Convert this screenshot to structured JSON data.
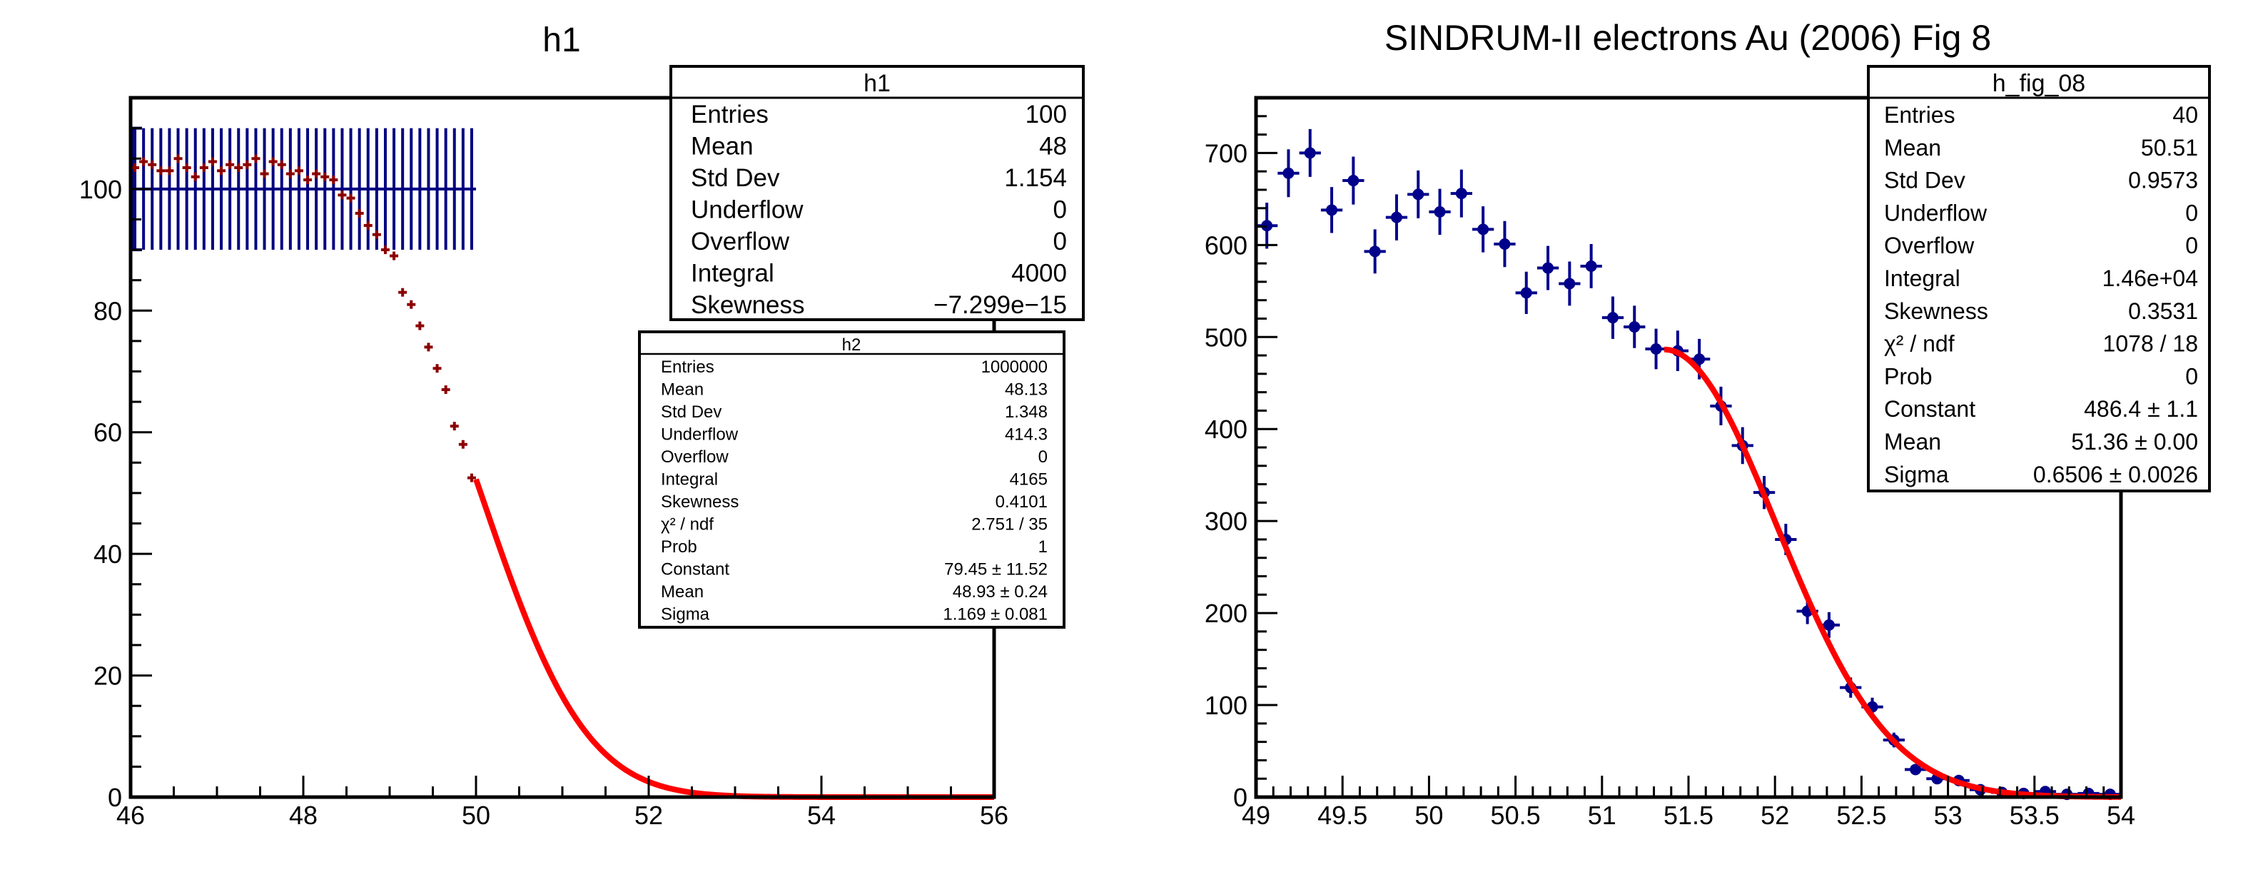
{
  "colors": {
    "frame": "#000000",
    "h1_points": "#8b0000",
    "h1_flat": "#000080",
    "fit": "#ff0000",
    "fig8_points": "#00008b"
  },
  "chart_data": [
    {
      "type": "scatter",
      "title": "h1",
      "xlim": [
        46,
        56
      ],
      "ylim": [
        0,
        115
      ],
      "xticks": [
        {
          "v": 46,
          "label": "46"
        },
        {
          "v": 48,
          "label": "48"
        },
        {
          "v": 50,
          "label": "50"
        },
        {
          "v": 52,
          "label": "52"
        },
        {
          "v": 54,
          "label": "54"
        },
        {
          "v": 56,
          "label": "56"
        }
      ],
      "yticks": [
        {
          "v": 0,
          "label": "0"
        },
        {
          "v": 20,
          "label": "20"
        },
        {
          "v": 40,
          "label": "40"
        },
        {
          "v": 60,
          "label": "60"
        },
        {
          "v": 80,
          "label": "80"
        },
        {
          "v": 100,
          "label": "100"
        }
      ],
      "flat_series": {
        "name": "h1",
        "value": 100,
        "error": 10,
        "x": [
          46.05,
          46.15,
          46.25,
          46.35,
          46.45,
          46.55,
          46.65,
          46.75,
          46.85,
          46.95,
          47.05,
          47.15,
          47.25,
          47.35,
          47.45,
          47.55,
          47.65,
          47.75,
          47.85,
          47.95,
          48.05,
          48.15,
          48.25,
          48.35,
          48.45,
          48.55,
          48.65,
          48.75,
          48.85,
          48.95,
          49.05,
          49.15,
          49.25,
          49.35,
          49.45,
          49.55,
          49.65,
          49.75,
          49.85,
          49.95
        ],
        "xrange": [
          46,
          50
        ]
      },
      "points": {
        "name": "h2",
        "x": [
          46.05,
          46.15,
          46.25,
          46.35,
          46.45,
          46.55,
          46.65,
          46.75,
          46.85,
          46.95,
          47.05,
          47.15,
          47.25,
          47.35,
          47.45,
          47.55,
          47.65,
          47.75,
          47.85,
          47.95,
          48.05,
          48.15,
          48.25,
          48.35,
          48.45,
          48.55,
          48.65,
          48.75,
          48.85,
          48.95,
          49.05,
          49.15,
          49.25,
          49.35,
          49.45,
          49.55,
          49.65,
          49.75,
          49.85,
          49.95
        ],
        "y": [
          103.5,
          104.5,
          104,
          103,
          103,
          105,
          103.5,
          102,
          103.5,
          104.5,
          103,
          104,
          103.5,
          104,
          105,
          102.5,
          104.5,
          104,
          102.5,
          103,
          101.5,
          102.5,
          102,
          101.5,
          99,
          98.5,
          96,
          94,
          92.5,
          90,
          89,
          83,
          81,
          77.5,
          74,
          70.5,
          67,
          61,
          58,
          52.5
        ]
      },
      "fit": {
        "function": "gaus",
        "constant": 79.45,
        "mean": 48.93,
        "sigma": 1.169,
        "xrange": [
          50,
          56
        ]
      },
      "stats_boxes": [
        {
          "title": "h1",
          "rows": [
            {
              "label": "Entries",
              "value": "100"
            },
            {
              "label": "Mean",
              "value": "48"
            },
            {
              "label": "Std Dev",
              "value": "1.154"
            },
            {
              "label": "Underflow",
              "value": "0"
            },
            {
              "label": "Overflow",
              "value": "0"
            },
            {
              "label": "Integral",
              "value": "4000"
            },
            {
              "label": "Skewness",
              "value": "−7.299e−15"
            }
          ]
        },
        {
          "title": "h2",
          "rows": [
            {
              "label": "Entries",
              "value": "1000000"
            },
            {
              "label": "Mean",
              "value": "48.13"
            },
            {
              "label": "Std Dev",
              "value": "1.348"
            },
            {
              "label": "Underflow",
              "value": "414.3"
            },
            {
              "label": "Overflow",
              "value": "0"
            },
            {
              "label": "Integral",
              "value": "4165"
            },
            {
              "label": "Skewness",
              "value": "0.4101"
            },
            {
              "label": "χ² / ndf",
              "value": "2.751 / 35"
            },
            {
              "label": "Prob",
              "value": "1"
            },
            {
              "label": "Constant",
              "value": "79.45 ± 11.52"
            },
            {
              "label": "Mean",
              "value": "48.93 ± 0.24"
            },
            {
              "label": "Sigma",
              "value": "1.169 ± 0.081"
            }
          ]
        }
      ]
    },
    {
      "type": "scatter",
      "title": "SINDRUM-II electrons Au (2006) Fig 8",
      "xlim": [
        49,
        54
      ],
      "ylim": [
        0,
        760
      ],
      "xticks": [
        {
          "v": 49,
          "label": "49"
        },
        {
          "v": 49.5,
          "label": "49.5"
        },
        {
          "v": 50,
          "label": "50"
        },
        {
          "v": 50.5,
          "label": "50.5"
        },
        {
          "v": 51,
          "label": "51"
        },
        {
          "v": 51.5,
          "label": "51.5"
        },
        {
          "v": 52,
          "label": "52"
        },
        {
          "v": 52.5,
          "label": "52.5"
        },
        {
          "v": 53,
          "label": "53"
        },
        {
          "v": 53.5,
          "label": "53.5"
        },
        {
          "v": 54,
          "label": "54"
        }
      ],
      "yticks": [
        {
          "v": 0,
          "label": "0"
        },
        {
          "v": 100,
          "label": "100"
        },
        {
          "v": 200,
          "label": "200"
        },
        {
          "v": 300,
          "label": "300"
        },
        {
          "v": 400,
          "label": "400"
        },
        {
          "v": 500,
          "label": "500"
        },
        {
          "v": 600,
          "label": "600"
        },
        {
          "v": 700,
          "label": "700"
        }
      ],
      "points": {
        "name": "h_fig_08",
        "bin_half_width": 0.0625,
        "x": [
          49.0625,
          49.1875,
          49.3125,
          49.4375,
          49.5625,
          49.6875,
          49.8125,
          49.9375,
          50.0625,
          50.1875,
          50.3125,
          50.4375,
          50.5625,
          50.6875,
          50.8125,
          50.9375,
          51.0625,
          51.1875,
          51.3125,
          51.4375,
          51.5625,
          51.6875,
          51.8125,
          51.9375,
          52.0625,
          52.1875,
          52.3125,
          52.4375,
          52.5625,
          52.6875,
          52.8125,
          52.9375,
          53.0625,
          53.1875,
          53.3125,
          53.4375,
          53.5625,
          53.6875,
          53.8125,
          53.9375
        ],
        "y": [
          621,
          678,
          700,
          638,
          670,
          593,
          630,
          655,
          636,
          656,
          617,
          601,
          548,
          575,
          558,
          577,
          521,
          511,
          487,
          485,
          476,
          425,
          382,
          331,
          280,
          202,
          187,
          119,
          98,
          62,
          30,
          20,
          18,
          8,
          5,
          4,
          6,
          3,
          4,
          3
        ],
        "err": [
          25,
          26,
          26,
          25,
          26,
          24,
          25,
          26,
          25,
          26,
          25,
          25,
          23,
          24,
          24,
          24,
          23,
          23,
          22,
          22,
          22,
          21,
          20,
          18,
          17,
          14,
          14,
          11,
          10,
          8,
          6,
          5,
          4,
          3,
          2,
          2,
          2,
          2,
          2,
          2
        ]
      },
      "fit": {
        "function": "gaus",
        "constant": 486.4,
        "mean": 51.36,
        "sigma": 0.6506,
        "xrange": [
          51.36,
          54
        ]
      },
      "stats_boxes": [
        {
          "title": "h_fig_08",
          "rows": [
            {
              "label": "Entries",
              "value": "40"
            },
            {
              "label": "Mean",
              "value": "50.51"
            },
            {
              "label": "Std Dev",
              "value": "0.9573"
            },
            {
              "label": "Underflow",
              "value": "0"
            },
            {
              "label": "Overflow",
              "value": "0"
            },
            {
              "label": "Integral",
              "value": "1.46e+04"
            },
            {
              "label": "Skewness",
              "value": "0.3531"
            },
            {
              "label": "χ² / ndf",
              "value": "1078 / 18"
            },
            {
              "label": "Prob",
              "value": "0"
            },
            {
              "label": "Constant",
              "value": "486.4 ± 1.1"
            },
            {
              "label": "Mean",
              "value": "51.36 ± 0.00"
            },
            {
              "label": "Sigma",
              "value": "0.6506 ± 0.0026"
            }
          ]
        }
      ]
    }
  ]
}
